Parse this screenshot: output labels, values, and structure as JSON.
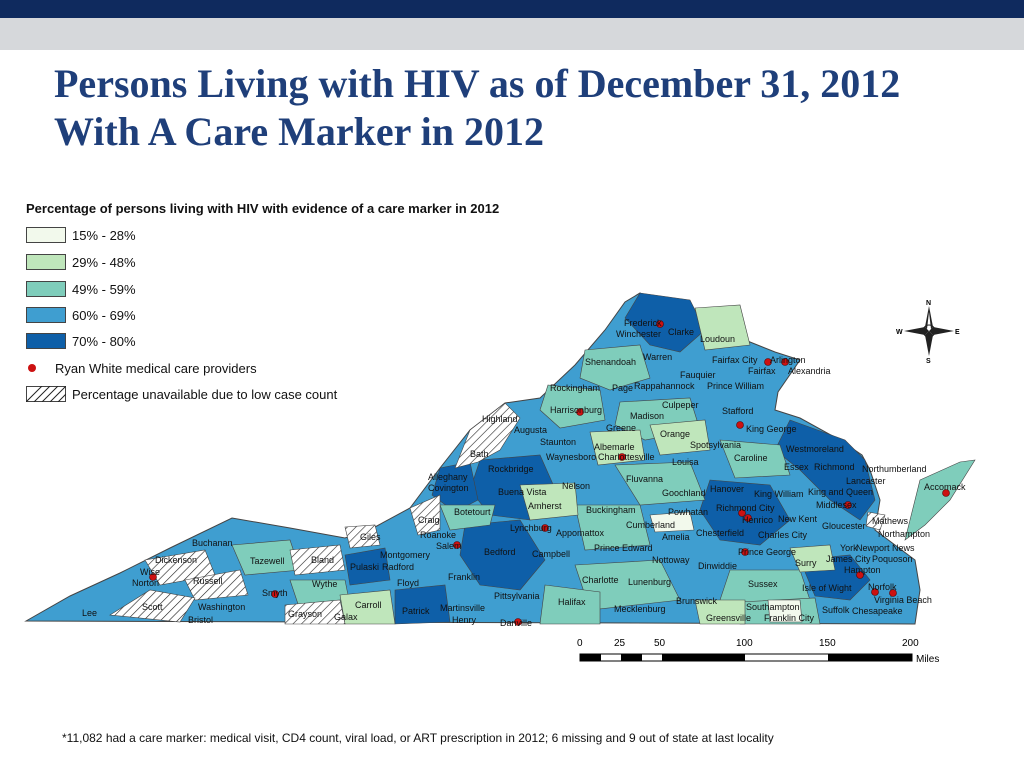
{
  "slide": {
    "title": "Persons Living with HIV as of December 31, 2012 With A Care Marker in 2012",
    "footnote": "*11,082 had  a care marker: medical visit, CD4 count, viral load, or ART prescription  in 2012; 6 missing and 9 out of state at last locality"
  },
  "legend": {
    "title": "Percentage of persons living with HIV with evidence of a care marker in 2012",
    "classes": [
      {
        "label": "15% - 28%",
        "color": "#f2f9ec"
      },
      {
        "label": "29% - 48%",
        "color": "#bfe6bb"
      },
      {
        "label": "49% - 59%",
        "color": "#7fcdbb"
      },
      {
        "label": "60% - 69%",
        "color": "#3f9ed0"
      },
      {
        "label": "70% - 80%",
        "color": "#0e5fa8"
      }
    ],
    "providers_label": "Ryan White medical care providers",
    "providers_color": "#cc1111",
    "unavailable_label": "Percentage unavailable due to low case count"
  },
  "map": {
    "compass": {
      "n": "N",
      "s": "S",
      "e": "E",
      "w": "W"
    },
    "scale": {
      "ticks": [
        "0",
        "25",
        "50",
        "100",
        "150",
        "200"
      ],
      "unit": "Miles"
    },
    "localities": [
      "Frederick",
      "Winchester",
      "Clarke",
      "Loudoun",
      "Shenandoah",
      "Warren",
      "Fairfax City",
      "Arlington",
      "Fairfax",
      "Alexandria",
      "Fauquier",
      "Rockingham",
      "Page",
      "Rappahannock",
      "Prince William",
      "Culpeper",
      "Harrisonburg",
      "Madison",
      "Stafford",
      "Highland",
      "Greene",
      "Orange",
      "King George",
      "Augusta",
      "Staunton",
      "Albemarle",
      "Spotsylvania",
      "Westmoreland",
      "Waynesboro",
      "Charlottesville",
      "Louisa",
      "Caroline",
      "Bath",
      "Essex",
      "Richmond",
      "Northumberland",
      "Lancaster",
      "Rockbridge",
      "Fluvanna",
      "Alleghany",
      "Covington",
      "Buena Vista",
      "Nelson",
      "Hanover",
      "Goochland",
      "King William",
      "King and Queen",
      "Middlesex",
      "Accomack",
      "Amherst",
      "Botetourt",
      "Buckingham",
      "Powhatan",
      "Richmond City",
      "Henrico",
      "New Kent",
      "Gloucester",
      "Mathews",
      "Craig",
      "Lynchburg",
      "Appomattox",
      "Cumberland",
      "Chesterfield",
      "Charles City",
      "Northampton",
      "Roanoke",
      "Amelia",
      "Salem",
      "Giles",
      "Buchanan",
      "Bedford",
      "Campbell",
      "Prince Edward",
      "Prince George",
      "James City",
      "York",
      "Newport News",
      "Poquoson",
      "Dickenson",
      "Tazewell",
      "Bland",
      "Montgomery",
      "Radford",
      "Pulaski",
      "Nottoway",
      "Dinwiddie",
      "Surry",
      "Hampton",
      "Wise",
      "Russell",
      "Franklin",
      "Norton",
      "Smyth",
      "Wythe",
      "Floyd",
      "Charlotte",
      "Lunenburg",
      "Sussex",
      "Isle of Wight",
      "Norfolk",
      "Virginia Beach",
      "Pittsylvania",
      "Halifax",
      "Brunswick",
      "Scott",
      "Washington",
      "Carroll",
      "Lee",
      "Southampton",
      "Suffolk",
      "Chesapeake",
      "Grayson",
      "Galax",
      "Patrick",
      "Martinsville",
      "Mecklenburg",
      "Greensville",
      "Franklin City",
      "Bristol",
      "Henry",
      "Danville"
    ]
  }
}
